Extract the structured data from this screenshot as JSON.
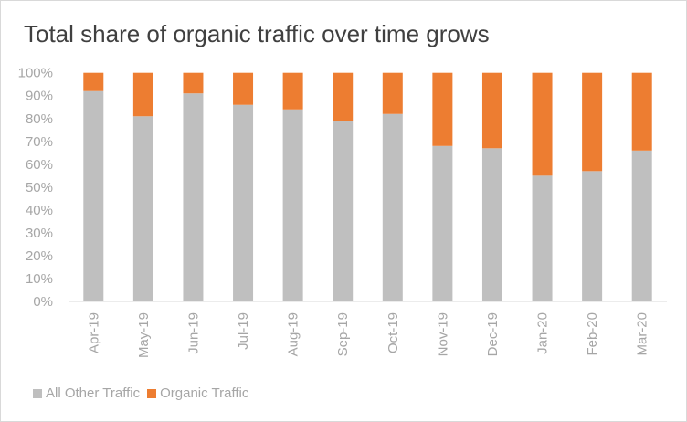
{
  "chart_data": {
    "type": "bar",
    "stacked": "percent",
    "title": "Total share of organic traffic over time grows",
    "xlabel": "",
    "ylabel": "",
    "ylim": [
      0,
      100
    ],
    "yticks": [
      "0%",
      "10%",
      "20%",
      "30%",
      "40%",
      "50%",
      "60%",
      "70%",
      "80%",
      "90%",
      "100%"
    ],
    "grid": false,
    "legend_position": "bottom-left",
    "categories": [
      "Apr-19",
      "May-19",
      "Jun-19",
      "Jul-19",
      "Aug-19",
      "Sep-19",
      "Oct-19",
      "Nov-19",
      "Dec-19",
      "Jan-20",
      "Feb-20",
      "Mar-20"
    ],
    "series": [
      {
        "name": "All Other Traffic",
        "color": "#bfbfbf",
        "values": [
          92,
          81,
          91,
          86,
          84,
          79,
          82,
          68,
          67,
          55,
          57,
          66
        ]
      },
      {
        "name": "Organic Traffic",
        "color": "#ed7d31",
        "values": [
          8,
          19,
          9,
          14,
          16,
          21,
          18,
          32,
          33,
          45,
          43,
          34
        ]
      }
    ]
  }
}
